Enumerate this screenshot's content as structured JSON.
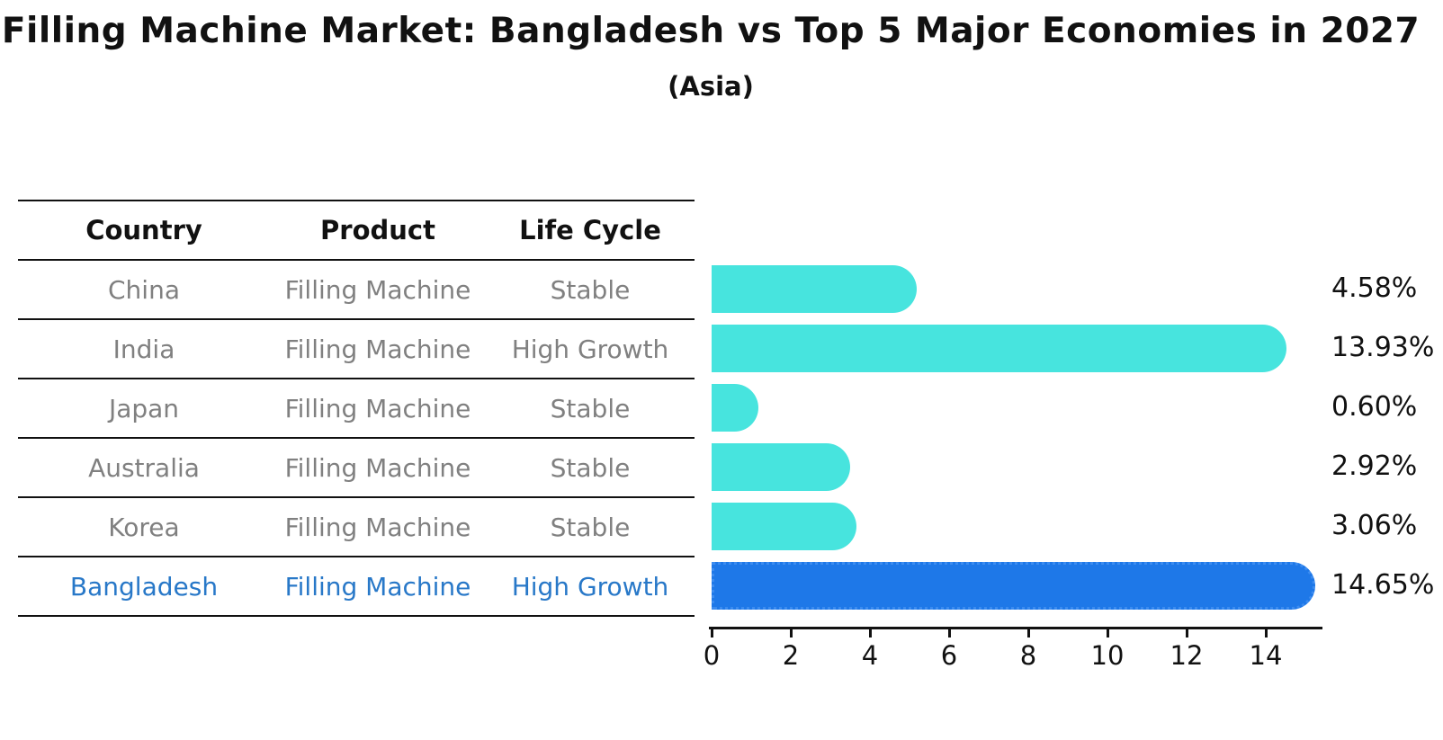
{
  "title": "Filling Machine Market: Bangladesh vs Top 5 Major Economies in 2027",
  "subtitle": "(Asia)",
  "table": {
    "columns": [
      "Country",
      "Product",
      "Life Cycle"
    ],
    "rows": [
      {
        "country": "China",
        "product": "Filling Machine",
        "life_cycle": "Stable",
        "highlight": false
      },
      {
        "country": "India",
        "product": "Filling Machine",
        "life_cycle": "High Growth",
        "highlight": false
      },
      {
        "country": "Japan",
        "product": "Filling Machine",
        "life_cycle": "Stable",
        "highlight": false
      },
      {
        "country": "Australia",
        "product": "Filling Machine",
        "life_cycle": "Stable",
        "highlight": false
      },
      {
        "country": "Korea",
        "product": "Filling Machine",
        "life_cycle": "Stable",
        "highlight": false
      },
      {
        "country": "Bangladesh",
        "product": "Filling Machine",
        "life_cycle": "High Growth",
        "highlight": true
      }
    ]
  },
  "chart_data": {
    "type": "bar",
    "orientation": "horizontal",
    "title": "Filling Machine Market: Bangladesh vs Top 5 Major Economies in 2027",
    "subtitle": "(Asia)",
    "categories": [
      "China",
      "India",
      "Japan",
      "Australia",
      "Korea",
      "Bangladesh"
    ],
    "values": [
      4.58,
      13.93,
      0.6,
      2.92,
      3.06,
      14.65
    ],
    "value_labels": [
      "4.58%",
      "13.93%",
      "0.60%",
      "2.92%",
      "3.06%",
      "14.65%"
    ],
    "x_ticks": [
      "0",
      "2",
      "4",
      "6",
      "8",
      "10",
      "12",
      "14"
    ],
    "xlim": [
      0,
      15.4
    ],
    "grid": false,
    "legend": false,
    "highlight_index": 5
  },
  "colors": {
    "bar_default": "#47e4de",
    "bar_highlight": "#1e78e8",
    "bar_highlight_edge": "#3c8cf0",
    "highlight_text": "#2878c8",
    "row_text": "#808080",
    "header_text": "#111111",
    "axis": "#111111"
  }
}
